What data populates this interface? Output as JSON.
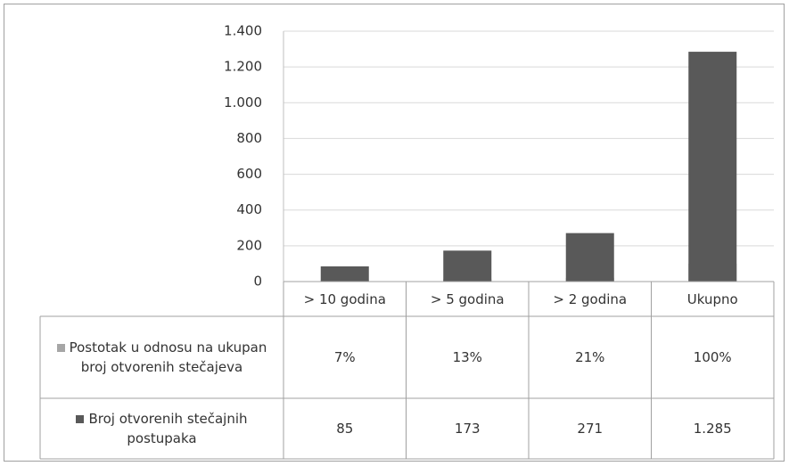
{
  "chart_data": {
    "type": "bar",
    "categories": [
      "> 10 godina",
      "> 5 godina",
      "> 2 godina",
      "Ukupno"
    ],
    "series": [
      {
        "name": "Postotak u odnosu na ukupan broj otvorenih stečajeva",
        "color": "#a6a6a6",
        "values": [
          7,
          13,
          21,
          100
        ],
        "value_labels": [
          "7%",
          "13%",
          "21%",
          "100%"
        ]
      },
      {
        "name": "Broj otvorenih stečajnih postupaka",
        "color": "#595959",
        "values": [
          85,
          173,
          271,
          1285
        ],
        "value_labels": [
          "85",
          "173",
          "271",
          "1.285"
        ]
      }
    ],
    "ylim": [
      0,
      1400
    ],
    "yticks": [
      0,
      200,
      400,
      600,
      800,
      {
        "value": 1000,
        "label": "1.000"
      },
      {
        "value": 1200,
        "label": "1.200"
      },
      {
        "value": 1400,
        "label": "1.400"
      }
    ],
    "grid": true,
    "data_table": true
  }
}
